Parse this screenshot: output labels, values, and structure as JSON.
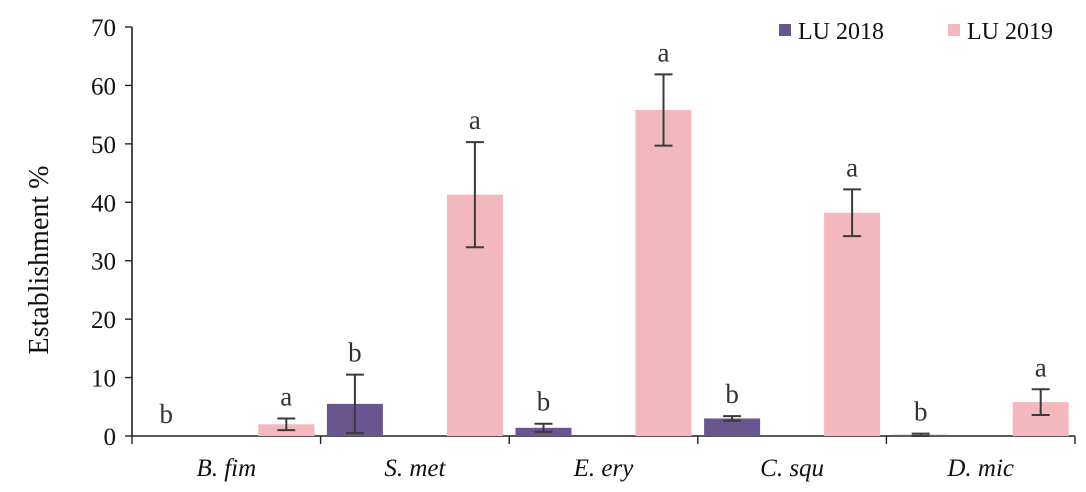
{
  "chart_data": {
    "type": "bar",
    "categories": [
      "B. fim",
      "S. met",
      "E. ery",
      "C. squ",
      "D. mic"
    ],
    "ylabel": "Establishment %",
    "ylim": [
      0,
      70
    ],
    "yticks": [
      0,
      10,
      20,
      30,
      40,
      50,
      60,
      70
    ],
    "grid": false,
    "legend_position": "top-right",
    "series": [
      {
        "name": "LU 2018",
        "color": "#6a568f",
        "values": [
          0,
          5.5,
          1.4,
          3.0,
          0.2
        ],
        "errors": [
          0,
          5.0,
          0.7,
          0.4,
          0.2
        ],
        "sig": [
          "b",
          "b",
          "b",
          "b",
          "b"
        ]
      },
      {
        "name": "LU 2019",
        "color": "#f2b8bd",
        "values": [
          2.0,
          41.3,
          55.8,
          38.2,
          5.8
        ],
        "errors": [
          1.0,
          9.0,
          6.1,
          4.0,
          2.2
        ],
        "sig": [
          "a",
          "a",
          "a",
          "a",
          "a"
        ]
      }
    ]
  }
}
